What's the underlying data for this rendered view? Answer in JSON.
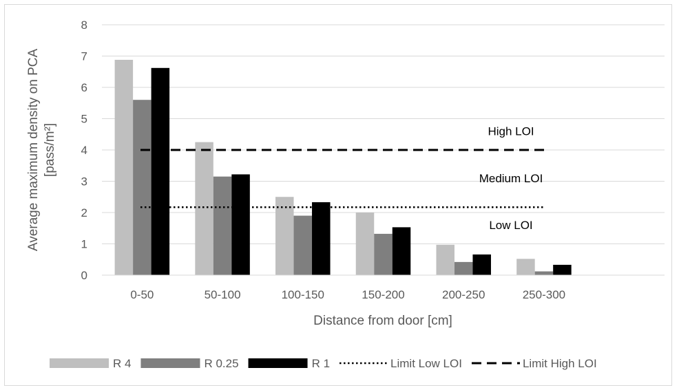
{
  "chart_data": {
    "type": "bar",
    "categories": [
      "0-50",
      "50-100",
      "100-150",
      "150-200",
      "200-250",
      "250-300"
    ],
    "series": [
      {
        "name": "R 4",
        "values": [
          6.88,
          4.25,
          2.5,
          2.0,
          0.97,
          0.52
        ],
        "color": "#bfbfbf"
      },
      {
        "name": "R 0.25",
        "values": [
          5.6,
          3.15,
          1.9,
          1.32,
          0.42,
          0.12
        ],
        "color": "#7f7f7f"
      },
      {
        "name": "R 1",
        "values": [
          6.62,
          3.22,
          2.33,
          1.53,
          0.66,
          0.33
        ],
        "color": "#000000"
      }
    ],
    "reference_lines": [
      {
        "name": "Limit Low LOI",
        "value": 2.17,
        "style": "dotted",
        "color": "#000000"
      },
      {
        "name": "Limit High LOI",
        "value": 4.0,
        "style": "dashed",
        "color": "#000000"
      }
    ],
    "annotations": [
      {
        "text": "High LOI",
        "y": 4.6
      },
      {
        "text": "Medium LOI",
        "y": 3.1
      },
      {
        "text": "Low LOI",
        "y": 1.6
      }
    ],
    "xlabel": "Distance from door [cm]",
    "ylabel": "Average maximum density on PCA [pass/m²]",
    "ylabel_lines": [
      "Average maximum density on PCA",
      "[pass/m²]"
    ],
    "ylim": [
      0,
      8
    ],
    "yticks": [
      0,
      1,
      2,
      3,
      4,
      5,
      6,
      7,
      8
    ],
    "grid": true,
    "legend_position": "bottom"
  }
}
